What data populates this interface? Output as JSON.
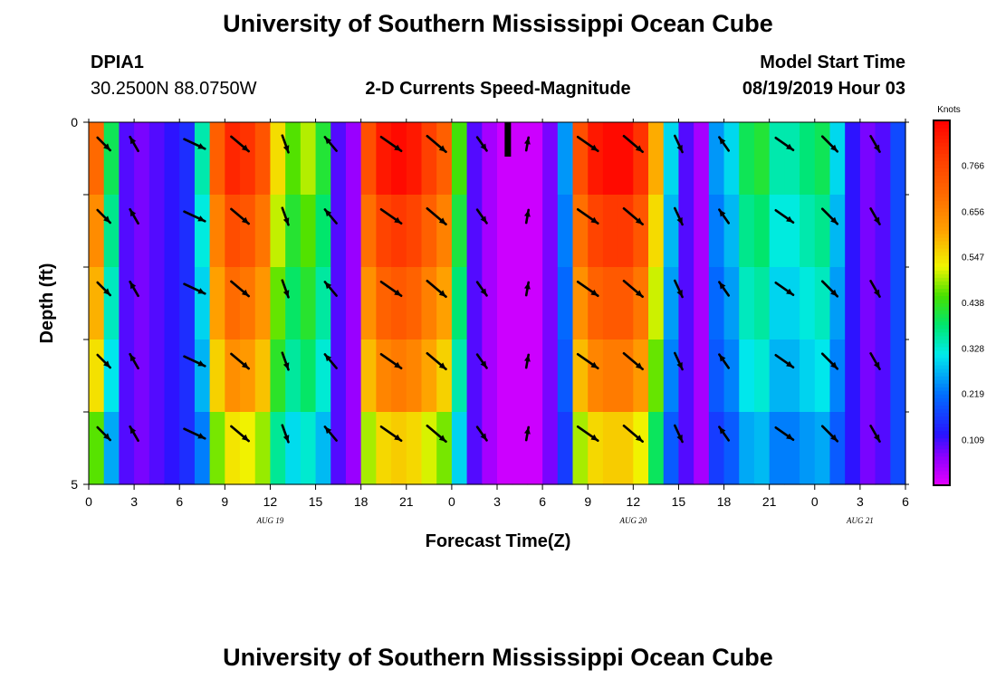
{
  "header": {
    "title_top": "University of Southern Mississippi Ocean Cube",
    "title_bottom": "University of Southern Mississippi Ocean Cube",
    "station": "DPIA1",
    "location": "30.2500N 88.0750W",
    "product": "2-D Currents Speed-Magnitude",
    "model_label": "Model Start Time",
    "model_time": "08/19/2019 Hour 03"
  },
  "chart_data": {
    "type": "heatmap",
    "title": "2-D Currents Speed-Magnitude",
    "xlabel": "Forecast Time(Z)",
    "ylabel": "Depth (ft)",
    "y_ticks": [
      "0",
      "5"
    ],
    "y_range": [
      0,
      5
    ],
    "x_tick_labels": [
      "0",
      "3",
      "6",
      "9",
      "12",
      "15",
      "18",
      "21",
      "0",
      "3",
      "6",
      "9",
      "12",
      "15",
      "18",
      "21",
      "0",
      "3",
      "6"
    ],
    "date_labels": [
      {
        "text": "AUG 19",
        "at_hour": 12
      },
      {
        "text": "AUG 20",
        "at_hour": 36
      },
      {
        "text": "AUG 21",
        "at_hour": 51
      }
    ],
    "hours_total": 54,
    "hour_step": 1,
    "depth_layers": 5,
    "colorbar": {
      "unit": "Knots",
      "range": [
        0.0,
        0.875
      ],
      "ticks": [
        "0.766",
        "0.656",
        "0.547",
        "0.438",
        "0.328",
        "0.219",
        "0.109"
      ],
      "tick_values": [
        0.766,
        0.656,
        0.547,
        0.438,
        0.328,
        0.219,
        0.109
      ]
    },
    "speed_surface_knots": [
      0.7,
      0.4,
      0.1,
      0.08,
      0.1,
      0.12,
      0.15,
      0.35,
      0.72,
      0.82,
      0.8,
      0.74,
      0.55,
      0.46,
      0.5,
      0.42,
      0.1,
      0.06,
      0.75,
      0.84,
      0.86,
      0.84,
      0.78,
      0.72,
      0.45,
      0.1,
      0.05,
      0.02,
      0.02,
      0.02,
      0.08,
      0.25,
      0.75,
      0.84,
      0.86,
      0.86,
      0.8,
      0.6,
      0.3,
      0.1,
      0.05,
      0.25,
      0.3,
      0.4,
      0.42,
      0.35,
      0.35,
      0.38,
      0.4,
      0.3,
      0.12,
      0.08,
      0.1,
      0.18
    ],
    "depth_factors": [
      1.0,
      0.92,
      0.85,
      0.78,
      0.66
    ],
    "arrow_hours": [
      1,
      3,
      7,
      10,
      13,
      16,
      20,
      23,
      26,
      29,
      33,
      36,
      39,
      42,
      46,
      49,
      52
    ],
    "arrow_direction_deg": [
      135,
      -30,
      115,
      130,
      160,
      -40,
      125,
      130,
      145,
      10,
      125,
      130,
      155,
      -35,
      125,
      135,
      150
    ],
    "arrow_length_knots": [
      0.55,
      0.5,
      0.7,
      0.7,
      0.55,
      0.55,
      0.75,
      0.75,
      0.5,
      0.4,
      0.75,
      0.75,
      0.55,
      0.5,
      0.65,
      0.65,
      0.55
    ]
  }
}
